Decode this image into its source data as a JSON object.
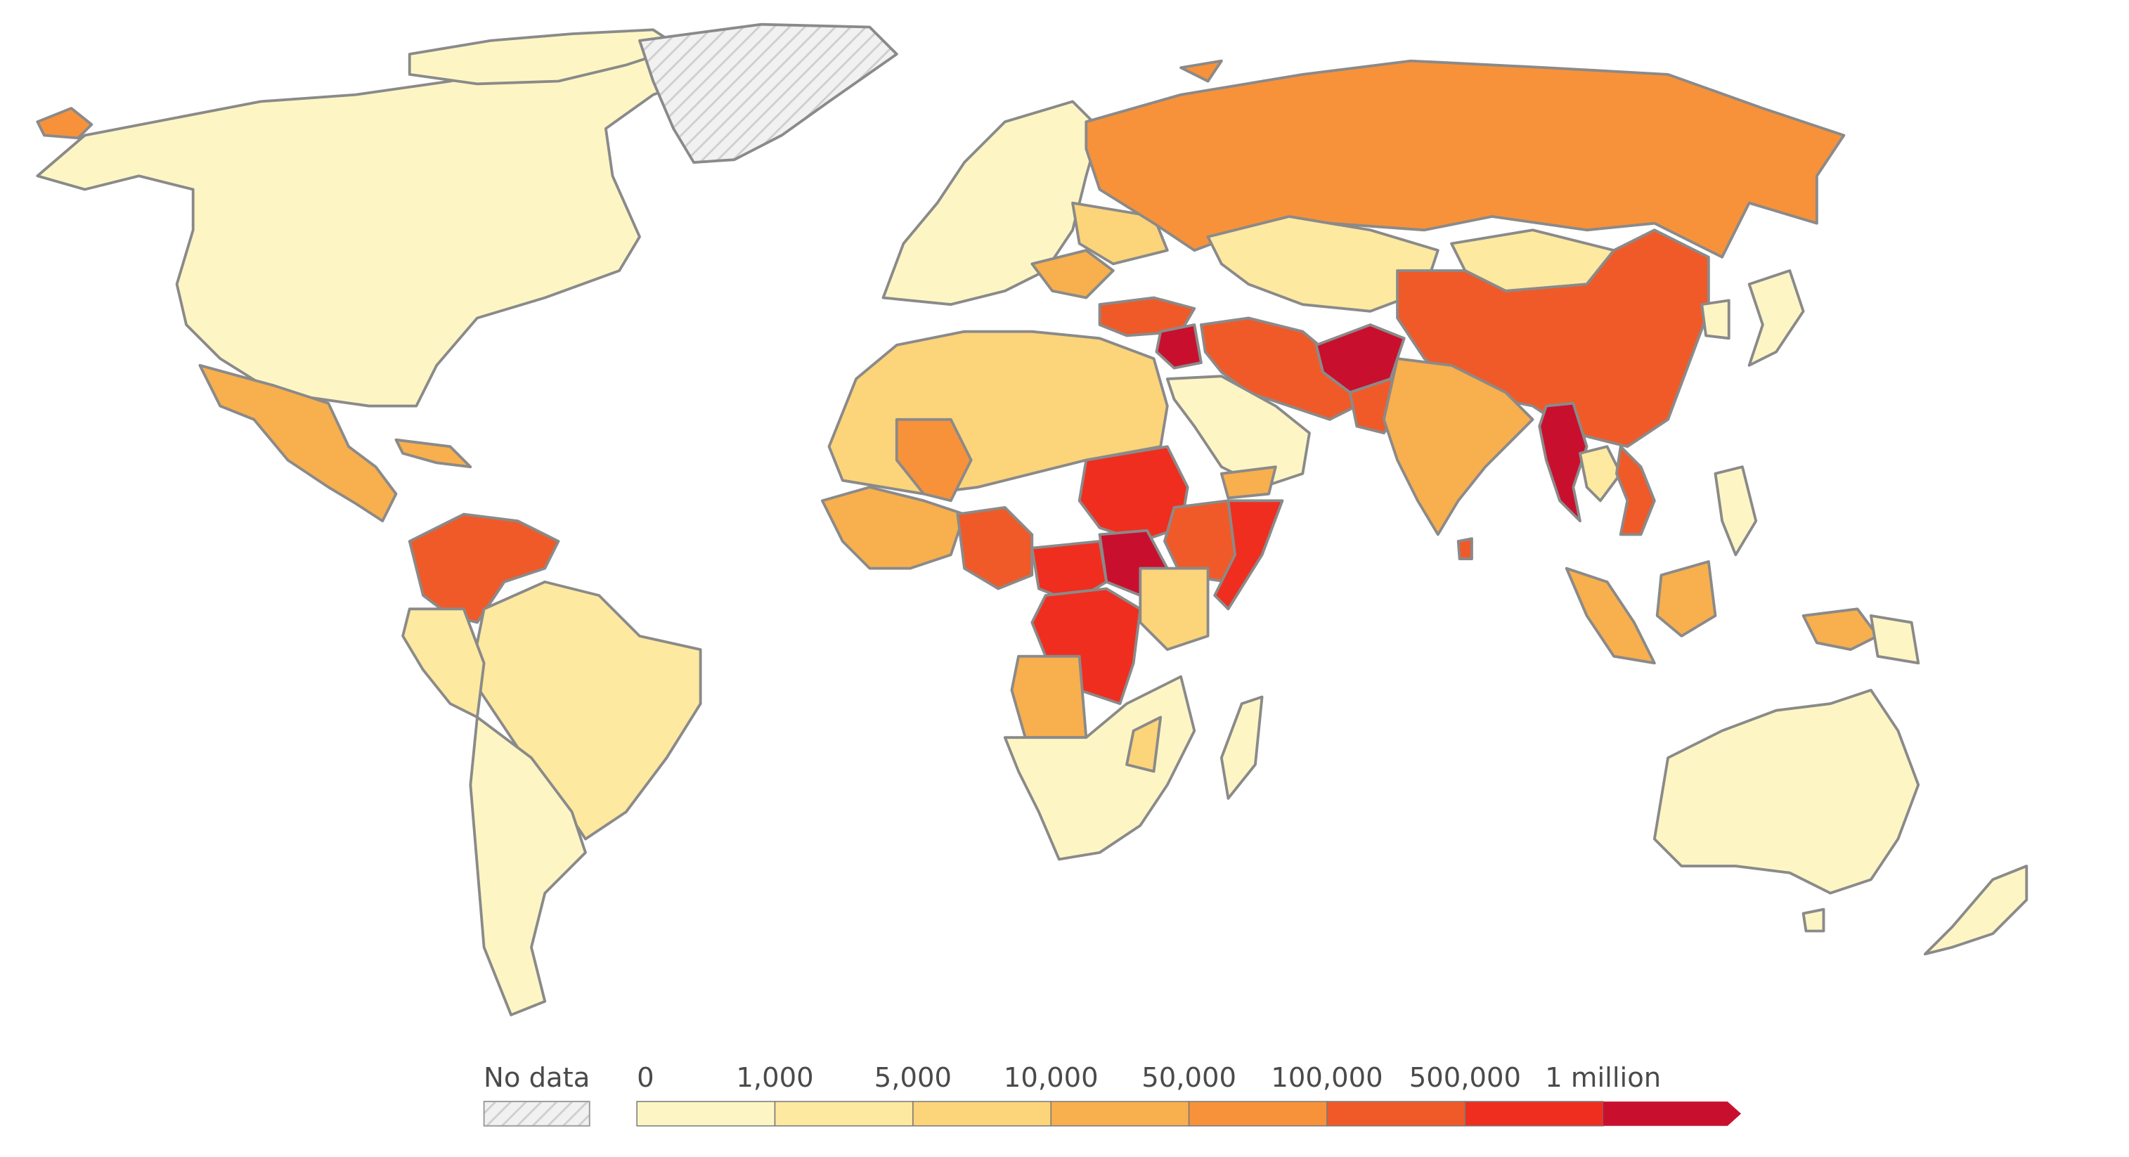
{
  "legend": {
    "no_data_label": "No data",
    "ticks": [
      "0",
      "1,000",
      "5,000",
      "10,000",
      "50,000",
      "100,000",
      "500,000",
      "1 million"
    ],
    "bins": [
      {
        "from": "0",
        "to": "1,000",
        "color": "#fdf6c4"
      },
      {
        "from": "1,000",
        "to": "5,000",
        "color": "#fde9a0"
      },
      {
        "from": "5,000",
        "to": "10,000",
        "color": "#fcd47a"
      },
      {
        "from": "10,000",
        "to": "50,000",
        "color": "#f8af4d"
      },
      {
        "from": "50,000",
        "to": "100,000",
        "color": "#f7923a"
      },
      {
        "from": "100,000",
        "to": "500,000",
        "color": "#f05a28"
      },
      {
        "from": "500,000",
        "to": "1 million",
        "color": "#ef2e1f"
      },
      {
        "from": "1 million",
        "to": "",
        "color": "#c8102e"
      }
    ]
  },
  "colors": {
    "no_data": "#eaeaea",
    "border": "#8a8a8a"
  },
  "regions": [
    {
      "name": "North America",
      "class": "0"
    },
    {
      "name": "Greenland",
      "class": "No data"
    },
    {
      "name": "Alaska",
      "class": "50,000"
    },
    {
      "name": "Mexico",
      "class": "10,000"
    },
    {
      "name": "Colombia",
      "class": "100,000"
    },
    {
      "name": "Venezuela",
      "class": "100,000"
    },
    {
      "name": "Brazil",
      "class": "1,000"
    },
    {
      "name": "Europe",
      "class": "0"
    },
    {
      "name": "Russia",
      "class": "50,000"
    },
    {
      "name": "China",
      "class": "100,000"
    },
    {
      "name": "Central Asia",
      "class": "1,000"
    },
    {
      "name": "Iran",
      "class": "100,000"
    },
    {
      "name": "Turkey",
      "class": "100,000"
    },
    {
      "name": "Syria",
      "class": "1 million"
    },
    {
      "name": "Afghanistan",
      "class": "1 million"
    },
    {
      "name": "India",
      "class": "10,000"
    },
    {
      "name": "Myanmar",
      "class": "1 million"
    },
    {
      "name": "Vietnam",
      "class": "100,000"
    },
    {
      "name": "Indonesia",
      "class": "10,000"
    },
    {
      "name": "Australia",
      "class": "0"
    },
    {
      "name": "North Africa",
      "class": "10,000"
    },
    {
      "name": "Sudan",
      "class": "500,000"
    },
    {
      "name": "South Sudan",
      "class": "1 million"
    },
    {
      "name": "Ethiopia",
      "class": "100,000"
    },
    {
      "name": "Somalia",
      "class": "500,000"
    },
    {
      "name": "DR Congo",
      "class": "500,000"
    },
    {
      "name": "Central African Republic",
      "class": "500,000"
    },
    {
      "name": "Nigeria",
      "class": "100,000"
    },
    {
      "name": "Mali",
      "class": "50,000"
    },
    {
      "name": "Angola",
      "class": "10,000"
    },
    {
      "name": "Southern Africa",
      "class": "0"
    }
  ]
}
